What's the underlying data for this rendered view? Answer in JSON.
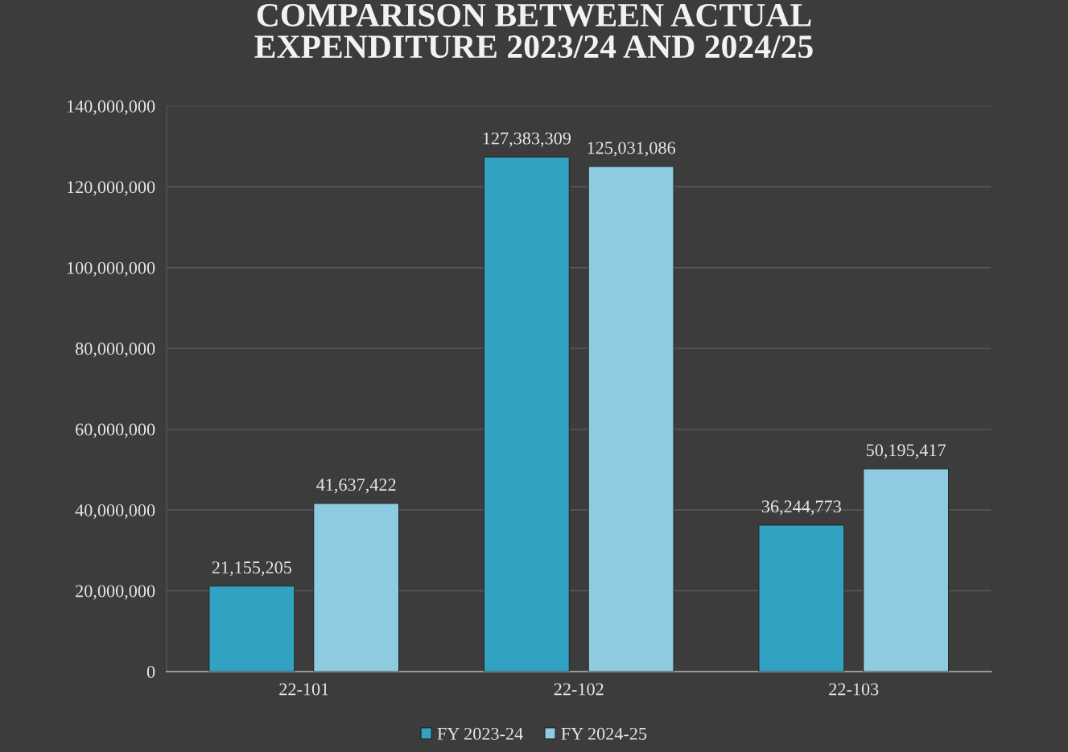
{
  "chart_data": {
    "type": "bar",
    "title": "COMPARISON BETWEEN ACTUAL\nEXPENDITURE 2023/24 AND 2024/25",
    "categories": [
      "22-101",
      "22-102",
      "22-103"
    ],
    "series": [
      {
        "name": "FY 2023-24",
        "color": "#31a2c2",
        "values": [
          21155205,
          127383309,
          36244773
        ],
        "value_labels": [
          "21,155,205",
          "127,383,309",
          "36,244,773"
        ]
      },
      {
        "name": "FY 2024-25",
        "color": "#8ecae0",
        "values": [
          41637422,
          125031086,
          50195417
        ],
        "value_labels": [
          "41,637,422",
          "125,031,086",
          "50,195,417"
        ]
      }
    ],
    "ylim": [
      0,
      140000000
    ],
    "yticks": [
      {
        "value": 0,
        "label": "0"
      },
      {
        "value": 20000000,
        "label": "20,000,000"
      },
      {
        "value": 40000000,
        "label": "40,000,000"
      },
      {
        "value": 60000000,
        "label": "60,000,000"
      },
      {
        "value": 80000000,
        "label": "80,000,000"
      },
      {
        "value": 100000000,
        "label": "100,000,000"
      },
      {
        "value": 120000000,
        "label": "120,000,000"
      },
      {
        "value": 140000000,
        "label": "140,000,000"
      }
    ],
    "grid": "y",
    "legend": "bottom"
  }
}
